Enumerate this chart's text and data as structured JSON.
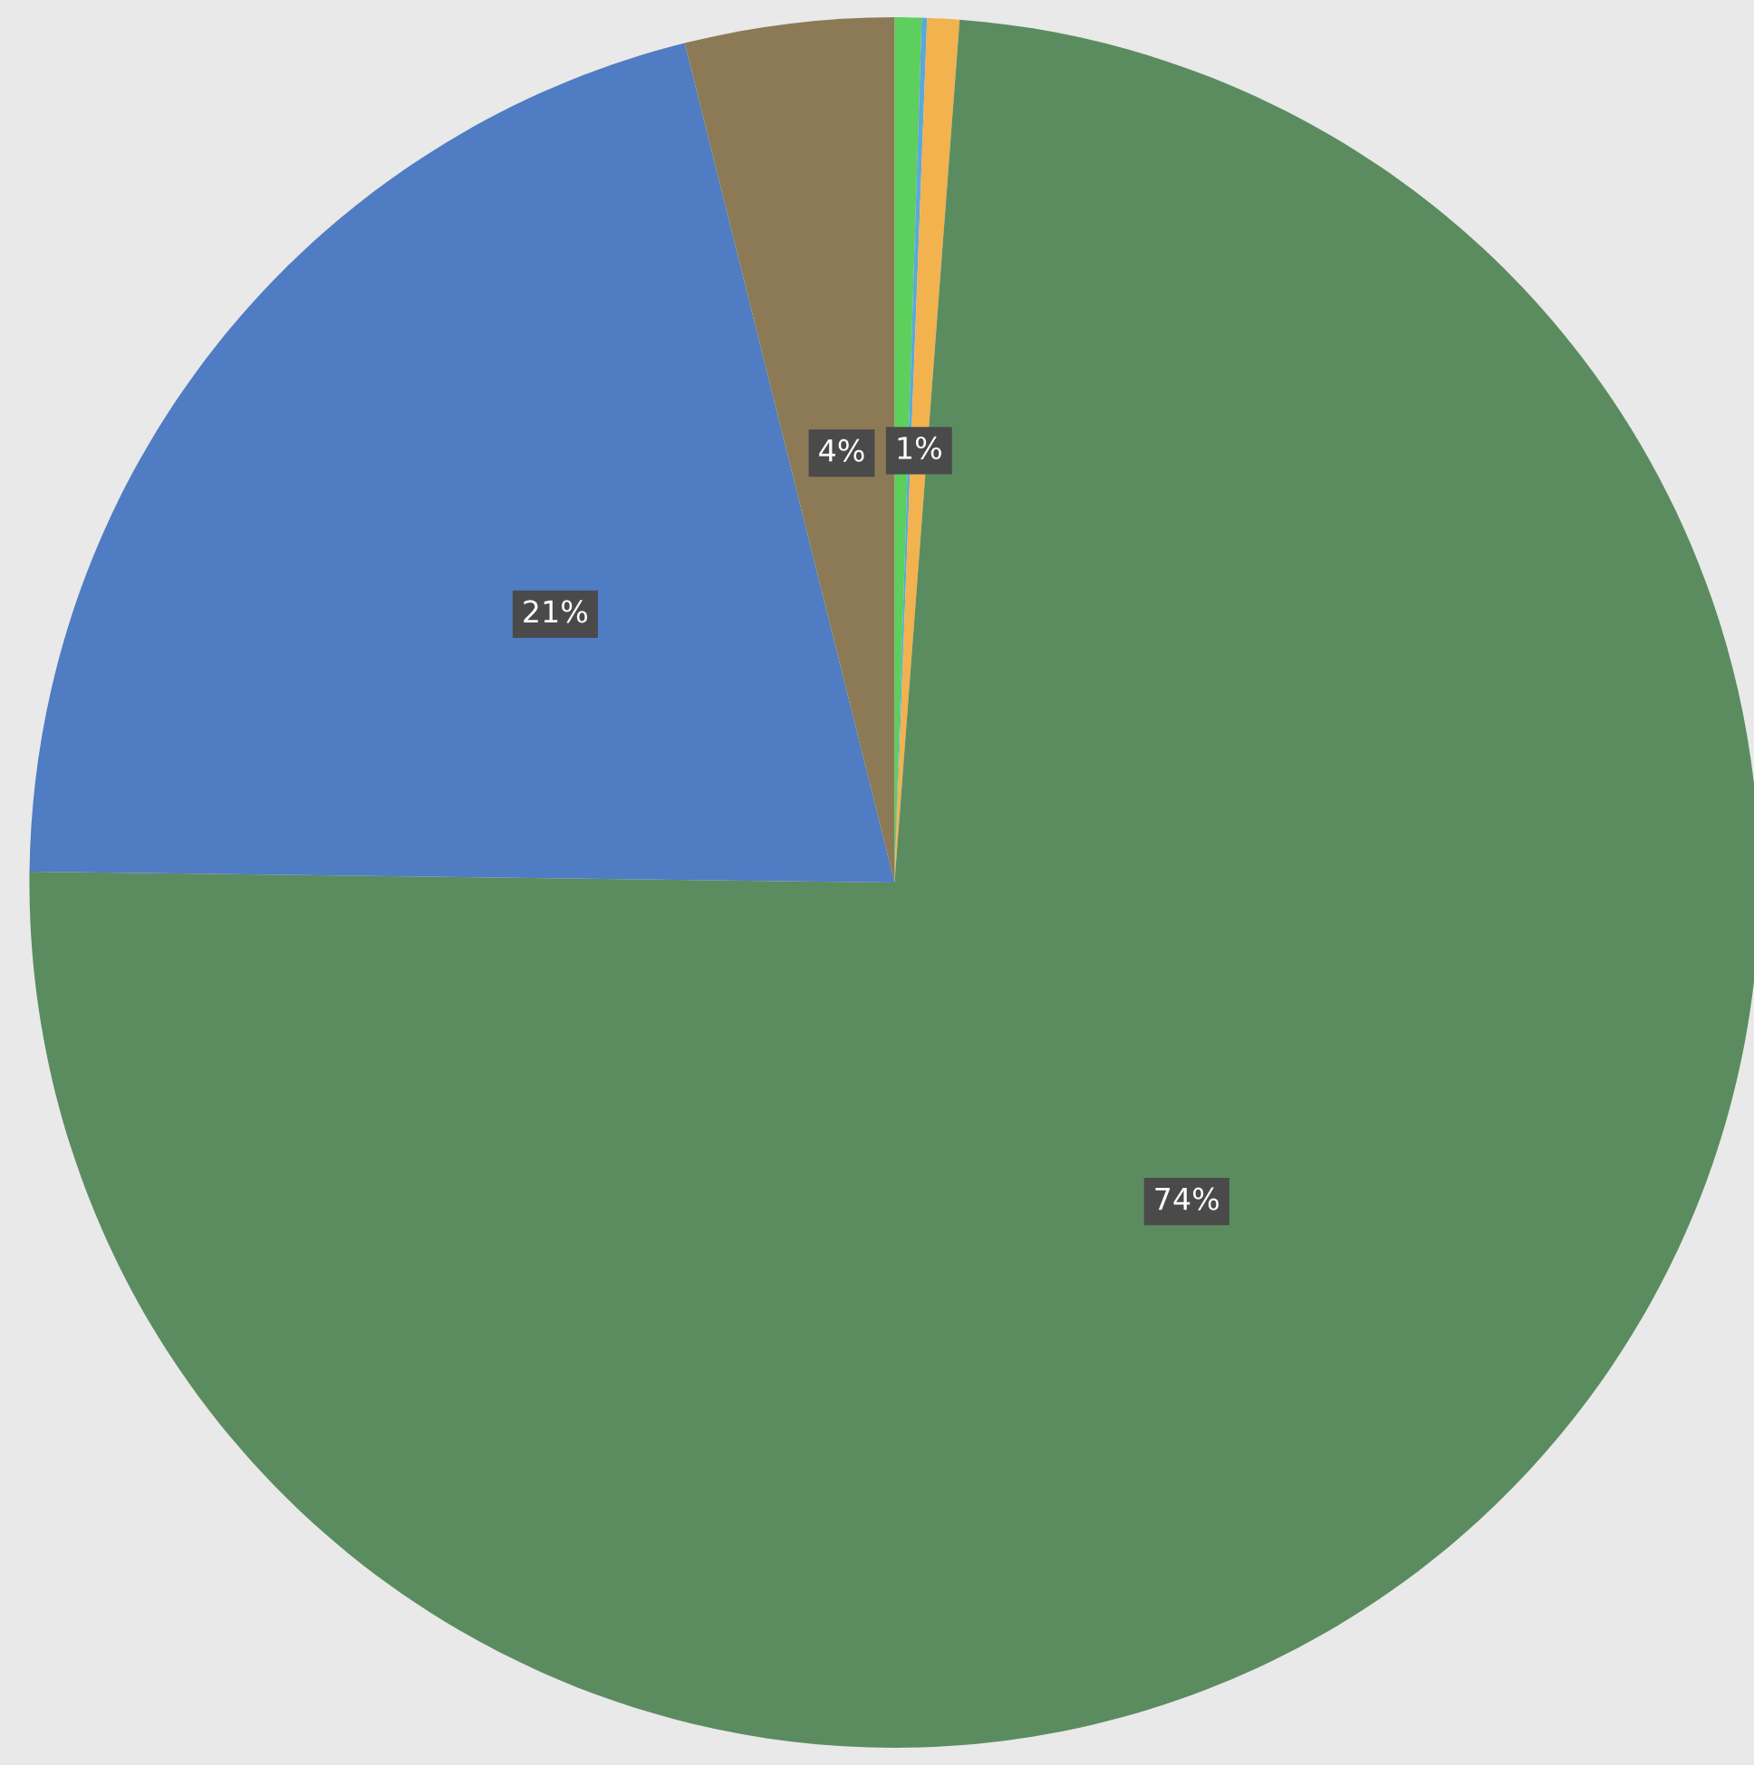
{
  "chart_data": {
    "type": "pie",
    "categories": [
      null,
      null,
      null,
      null,
      null,
      null
    ],
    "values": [
      0.5,
      0.1,
      0.6,
      74.0,
      20.9,
      3.9
    ],
    "colors": [
      "#5ccf5c",
      "#5aaad8",
      "#f2b24e",
      "#5b8c60",
      "#4f7cc2",
      "#8c7a56"
    ],
    "value_labels": [
      null,
      null,
      "1%",
      "74%",
      "21%",
      "4%"
    ],
    "legend": false
  }
}
